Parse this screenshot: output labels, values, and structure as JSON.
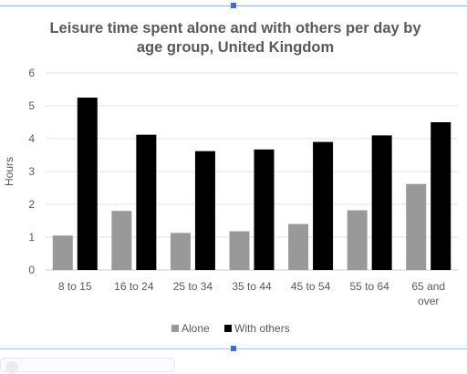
{
  "chart_data": {
    "type": "bar",
    "title_lines": [
      "Leisure time spent alone and with others per day by",
      "age group, United Kingdom"
    ],
    "xlabel": "",
    "ylabel": "Hours",
    "ylim": [
      0,
      6
    ],
    "yticks": [
      "0",
      "1",
      "2",
      "3",
      "4",
      "5",
      "6"
    ],
    "grid": true,
    "legend_position": "bottom",
    "categories": [
      [
        "8 to 15"
      ],
      [
        "16 to 24"
      ],
      [
        "25 to 34"
      ],
      [
        "35 to 44"
      ],
      [
        "45 to 54"
      ],
      [
        "55 to 64"
      ],
      [
        "65 and",
        "over"
      ]
    ],
    "series": [
      {
        "name": "Alone",
        "color": "#999999",
        "values": [
          1.05,
          1.8,
          1.13,
          1.18,
          1.4,
          1.82,
          2.62
        ]
      },
      {
        "name": "With others",
        "color": "#000000",
        "values": [
          5.25,
          4.12,
          3.62,
          3.67,
          3.9,
          4.1,
          4.5
        ]
      }
    ]
  }
}
